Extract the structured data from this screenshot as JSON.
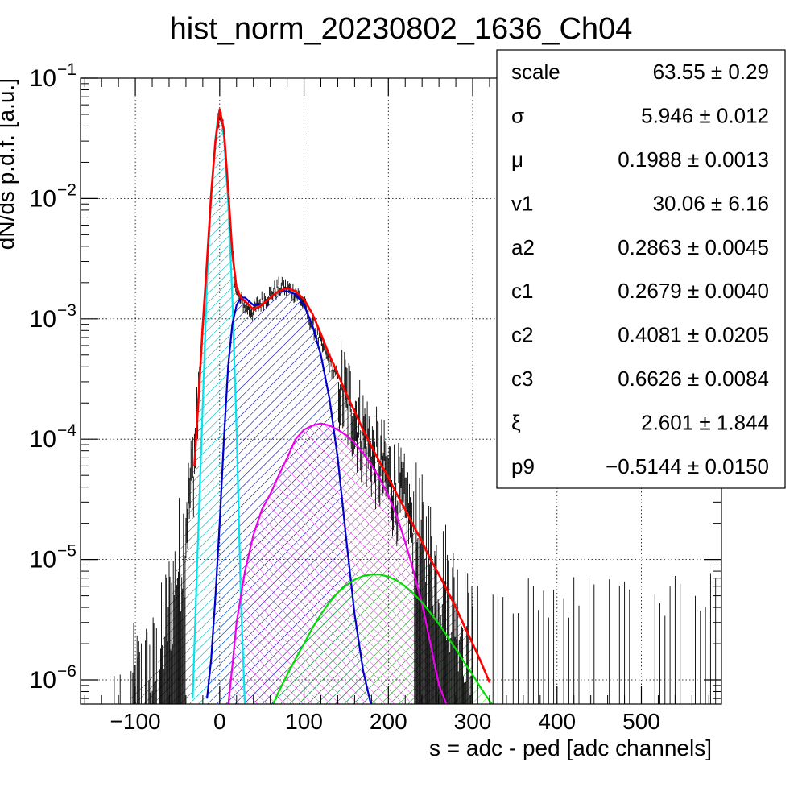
{
  "chart_data": {
    "type": "line",
    "title": "hist_norm_20230802_1636_Ch04",
    "xlabel": "s = adc - ped [adc channels]",
    "ylabel": "dN/ds p.d.f. [a.u.]",
    "xlim": [
      -165,
      595
    ],
    "ylim": [
      6.3e-07,
      0.1
    ],
    "yscale": "log",
    "grid": true,
    "x_ticks": [
      {
        "value": -100,
        "label": "−100"
      },
      {
        "value": 0,
        "label": "0"
      },
      {
        "value": 100,
        "label": "100"
      },
      {
        "value": 200,
        "label": "200"
      },
      {
        "value": 300,
        "label": "300"
      },
      {
        "value": 400,
        "label": "400"
      },
      {
        "value": 500,
        "label": "500"
      }
    ],
    "y_ticks": [
      {
        "value": 1e-06,
        "base": "10",
        "exp": "−6"
      },
      {
        "value": 1e-05,
        "base": "10",
        "exp": "−5"
      },
      {
        "value": 0.0001,
        "base": "10",
        "exp": "−4"
      },
      {
        "value": 0.001,
        "base": "10",
        "exp": "−3"
      },
      {
        "value": 0.01,
        "base": "10",
        "exp": "−2"
      },
      {
        "value": 0.1,
        "base": "10",
        "exp": "−1"
      }
    ],
    "series": [
      {
        "color": "#000000",
        "kind": "histogram",
        "x": [
          -105,
          -90,
          -75,
          -60,
          -50,
          -40,
          -30,
          -25,
          -20,
          -15,
          -10,
          -5,
          0,
          5,
          10,
          15,
          20,
          25,
          30,
          35,
          40,
          45,
          50,
          55,
          60,
          65,
          70,
          75,
          80,
          85,
          90,
          95,
          100,
          110,
          120,
          130,
          140,
          150,
          160,
          170,
          180,
          190,
          200,
          210,
          220,
          230,
          240,
          250,
          260,
          270,
          280,
          290,
          300
        ],
        "y": [
          8e-07,
          1e-06,
          1.2e-06,
          4e-06,
          9e-06,
          2e-05,
          7e-05,
          0.00025,
          0.0009,
          0.003,
          0.011,
          0.03,
          0.052,
          0.035,
          0.012,
          0.0035,
          0.0017,
          0.0014,
          0.0013,
          0.0012,
          0.00115,
          0.0013,
          0.0014,
          0.0015,
          0.0016,
          0.0017,
          0.0018,
          0.0018,
          0.0018,
          0.0017,
          0.00165,
          0.0015,
          0.0013,
          0.00088,
          0.00062,
          0.00044,
          0.00031,
          0.00021,
          0.00015,
          0.00011,
          8e-05,
          6e-05,
          4.7e-05,
          3.6e-05,
          2.7e-05,
          2e-05,
          1.5e-05,
          1.1e-05,
          8e-06,
          6.5e-06,
          4.5e-06,
          3e-06,
          2e-06
        ]
      },
      {
        "color": "#ff0000",
        "kind": "total fit",
        "x": [
          -30,
          -25,
          -20,
          -15,
          -10,
          -5,
          0,
          5,
          10,
          15,
          20,
          25,
          30,
          40,
          50,
          60,
          70,
          80,
          90,
          100,
          110,
          120,
          130,
          140,
          150,
          160,
          170,
          180,
          190,
          200,
          210,
          220,
          230,
          240,
          250,
          260,
          270,
          280,
          290,
          300,
          310,
          320
        ],
        "y": [
          6e-05,
          0.00022,
          0.0009,
          0.003,
          0.011,
          0.03,
          0.055,
          0.037,
          0.012,
          0.0035,
          0.0018,
          0.0015,
          0.0014,
          0.0012,
          0.0013,
          0.0015,
          0.0017,
          0.0018,
          0.0017,
          0.00145,
          0.0011,
          0.00075,
          0.0005,
          0.00035,
          0.00024,
          0.00017,
          0.00012,
          8.7e-05,
          6.4e-05,
          4.8e-05,
          3.5e-05,
          2.6e-05,
          1.9e-05,
          1.4e-05,
          1e-05,
          7.5e-06,
          5.5e-06,
          4e-06,
          2.8e-06,
          2e-06,
          1.4e-06,
          9.5e-07
        ]
      },
      {
        "color": "#00e5ee",
        "kind": "pedestal component",
        "x": [
          -32,
          -28,
          -25,
          -20,
          -15,
          -10,
          -5,
          -2,
          0,
          2,
          5,
          10,
          15,
          20,
          25,
          30
        ],
        "y": [
          7e-07,
          5e-06,
          2e-05,
          0.0002,
          0.002,
          0.011,
          0.032,
          0.048,
          0.052,
          0.048,
          0.032,
          0.0095,
          0.0015,
          0.00012,
          5e-06,
          6e-07
        ]
      },
      {
        "color": "#0000cc",
        "kind": "1 p.e. component",
        "x": [
          -15,
          -10,
          -5,
          0,
          5,
          10,
          15,
          20,
          25,
          30,
          40,
          50,
          60,
          70,
          80,
          90,
          100,
          110,
          120,
          130,
          140,
          150,
          160,
          170,
          180
        ],
        "y": [
          7e-07,
          1.5e-06,
          5e-06,
          2e-05,
          0.0001,
          0.0004,
          0.0009,
          0.0013,
          0.0015,
          0.0015,
          0.0013,
          0.0013,
          0.0015,
          0.0017,
          0.0017,
          0.0016,
          0.0013,
          0.00088,
          0.0005,
          0.00022,
          7e-05,
          1.5e-05,
          3.5e-06,
          1.2e-06,
          6e-07
        ]
      },
      {
        "color": "#ee00ee",
        "kind": "2 p.e. component",
        "x": [
          10,
          15,
          20,
          30,
          40,
          50,
          60,
          70,
          80,
          90,
          100,
          110,
          120,
          130,
          140,
          150,
          160,
          170,
          180,
          190,
          200,
          210,
          220,
          230,
          240,
          250,
          260,
          270
        ],
        "y": [
          6e-07,
          1.3e-06,
          3e-06,
          8e-06,
          1.6e-05,
          2.6e-05,
          3.5e-05,
          5e-05,
          7e-05,
          0.0001,
          0.00012,
          0.00013,
          0.000135,
          0.00013,
          0.00012,
          0.000108,
          9.3e-05,
          7.7e-05,
          6.1e-05,
          4.7e-05,
          3.4e-05,
          2.3e-05,
          1.4e-05,
          8e-06,
          4.2e-06,
          2e-06,
          9e-07,
          6e-07
        ]
      },
      {
        "color": "#00dd00",
        "kind": "3 p.e. component",
        "x": [
          62,
          70,
          80,
          90,
          100,
          110,
          120,
          130,
          140,
          150,
          160,
          170,
          180,
          190,
          200,
          210,
          220,
          230,
          240,
          250,
          260,
          270,
          280,
          290,
          300,
          310,
          320,
          325
        ],
        "y": [
          6e-07,
          8e-07,
          1.1e-06,
          1.5e-06,
          2e-06,
          2.7e-06,
          3.5e-06,
          4.4e-06,
          5.3e-06,
          6.1e-06,
          6.8e-06,
          7.3e-06,
          7.5e-06,
          7.5e-06,
          7.2e-06,
          6.7e-06,
          6e-06,
          5.2e-06,
          4.4e-06,
          3.6e-06,
          2.9e-06,
          2.3e-06,
          1.8e-06,
          1.4e-06,
          1.1e-06,
          8.5e-07,
          6.7e-07,
          6e-07
        ]
      }
    ],
    "stats_box": {
      "placement": "top-right",
      "rows": [
        {
          "name": "scale",
          "value": "63.55",
          "error": "0.29"
        },
        {
          "name": "σ",
          "value": "5.946",
          "error": "0.012"
        },
        {
          "name": "μ",
          "value": "0.1988",
          "error": "0.0013"
        },
        {
          "name": "v1",
          "value": "30.06",
          "error": "6.16"
        },
        {
          "name": "a2",
          "value": "0.2863",
          "error": "0.0045"
        },
        {
          "name": "c1",
          "value": "0.2679",
          "error": "0.0040"
        },
        {
          "name": "c2",
          "value": "0.4081",
          "error": "0.0205"
        },
        {
          "name": "c3",
          "value": "0.6626",
          "error": "0.0084"
        },
        {
          "name": "ξ",
          "value": "2.601",
          "error": "1.844"
        },
        {
          "name": "p9",
          "value": "−0.5144",
          "error": "0.0150"
        }
      ]
    }
  }
}
